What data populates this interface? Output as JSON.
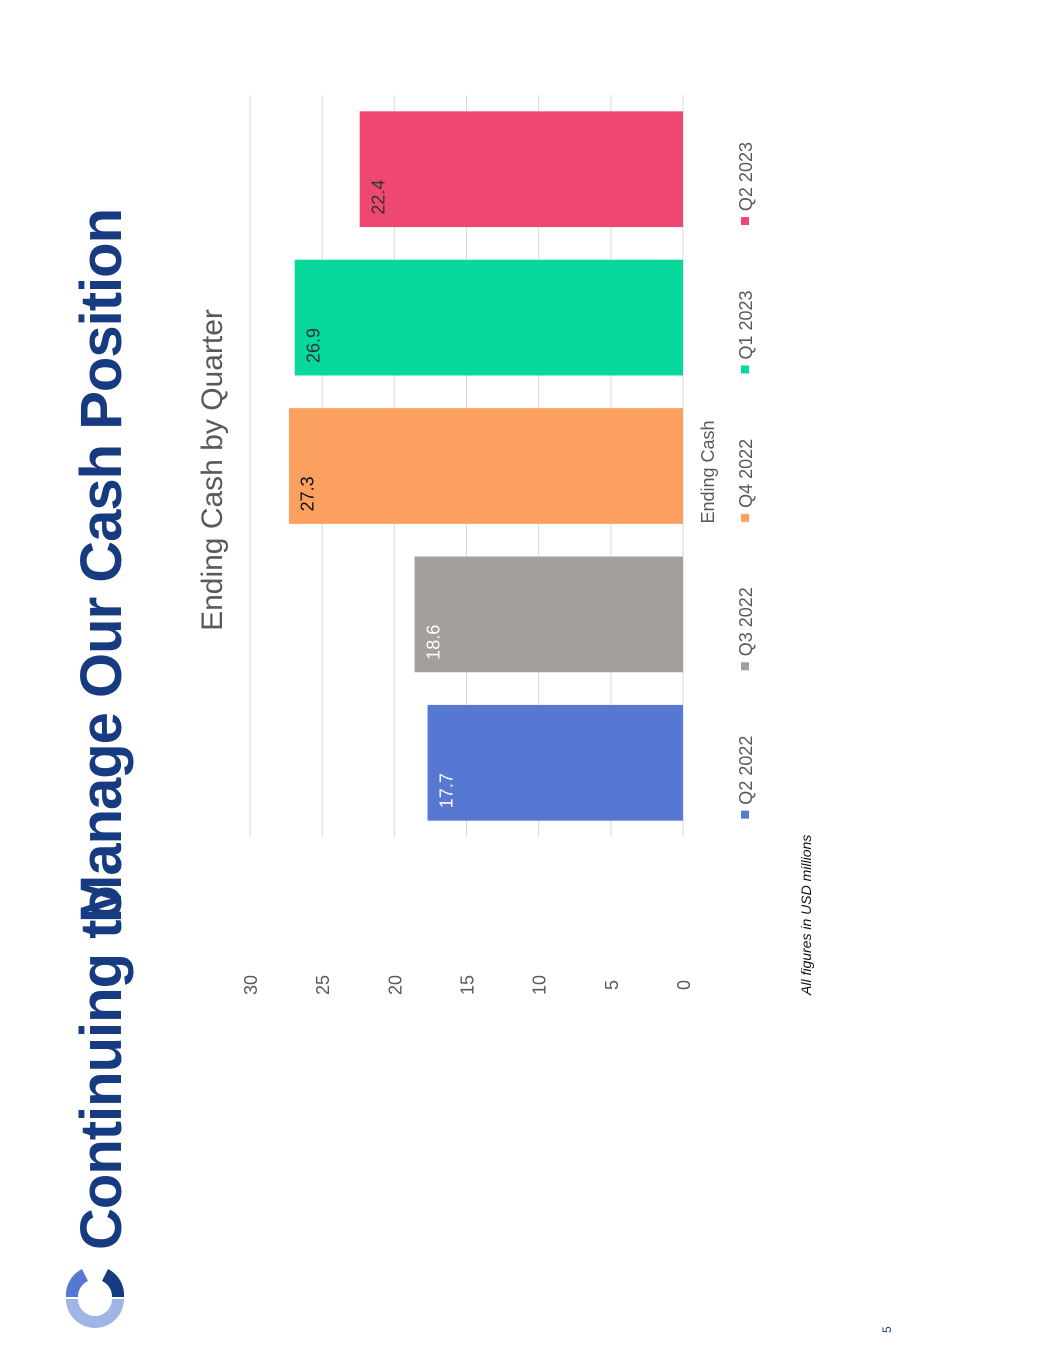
{
  "slide": {
    "title_part1": "Continuing to",
    "title_part2": "Manage Our Cash Position",
    "footnote": "All figures in USD millions",
    "page_number": "5",
    "title_color": "#173b80"
  },
  "chart_data": {
    "type": "bar",
    "title": "Ending Cash by Quarter",
    "xlabel": "Ending Cash",
    "ylabel": "",
    "categories": [
      "Ending Cash"
    ],
    "series": [
      {
        "name": "Q2 2022",
        "values": [
          17.7
        ],
        "color": "#5678d2"
      },
      {
        "name": "Q3 2022",
        "values": [
          18.6
        ],
        "color": "#a39f9c"
      },
      {
        "name": "Q4 2022",
        "values": [
          27.3
        ],
        "color": "#fba05e"
      },
      {
        "name": "Q1 2023",
        "values": [
          26.9
        ],
        "color": "#07d89c"
      },
      {
        "name": "Q2 2023",
        "values": [
          22.4
        ],
        "color": "#ef4870"
      }
    ],
    "ylim": [
      0,
      30
    ],
    "yticks": [
      0,
      5,
      10,
      15,
      20,
      25,
      30
    ],
    "grid": true,
    "legend": "bottom",
    "data_label_colors": [
      "#ffffff",
      "#ffffff",
      "#111111",
      "#333333",
      "#333333"
    ]
  }
}
